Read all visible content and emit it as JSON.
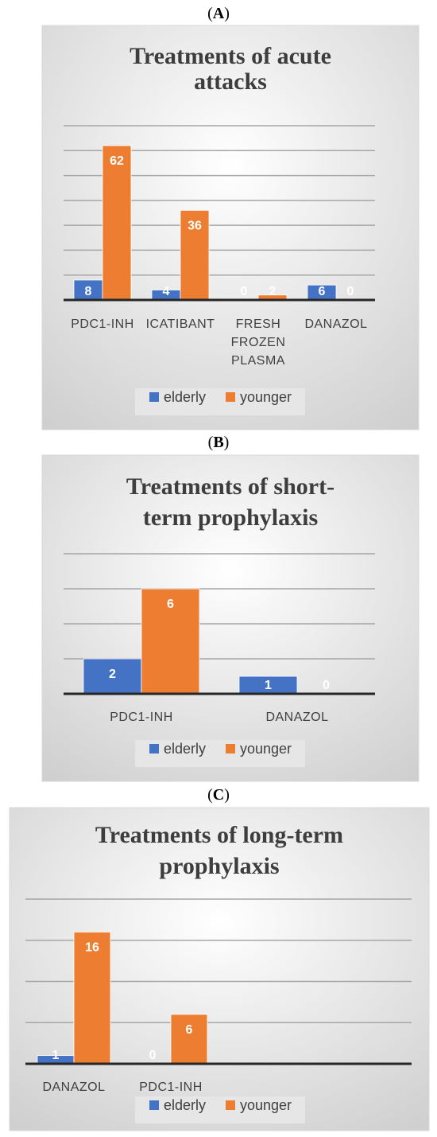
{
  "panels": [
    {
      "label_open": "(",
      "label_letter": "A",
      "label_close": ")"
    },
    {
      "label_open": "(",
      "label_letter": "B",
      "label_close": ")"
    },
    {
      "label_open": "(",
      "label_letter": "C",
      "label_close": ")"
    }
  ],
  "colors": {
    "elderly": "#4472C4",
    "younger": "#ED7D31",
    "gridline": "#a6a6a6",
    "axis": "#262626"
  },
  "chart_data": [
    {
      "type": "bar",
      "title": "Treatments of acute attacks",
      "title_lines": [
        "Treatments of acute",
        "attacks"
      ],
      "categories": [
        "PDC1-INH",
        "ICATIBANT",
        "FRESH FROZEN PLASMA",
        "DANAZOL"
      ],
      "category_lines": [
        [
          "PDC1-INH"
        ],
        [
          "ICATIBANT"
        ],
        [
          "FRESH",
          "FROZEN",
          "PLASMA"
        ],
        [
          "DANAZOL"
        ]
      ],
      "series": [
        {
          "name": "elderly",
          "values": [
            8,
            4,
            0,
            6
          ]
        },
        {
          "name": "younger",
          "values": [
            62,
            36,
            2,
            0
          ]
        }
      ],
      "ylim": [
        0,
        70
      ],
      "grid": true,
      "legend": "bottom"
    },
    {
      "type": "bar",
      "title": "Treatments of short-term prophylaxis",
      "title_lines": [
        "Treatments of short-",
        "term prophylaxis"
      ],
      "categories": [
        "PDC1-INH",
        "DANAZOL"
      ],
      "category_lines": [
        [
          "PDC1-INH"
        ],
        [
          "DANAZOL"
        ]
      ],
      "series": [
        {
          "name": "elderly",
          "values": [
            2,
            1
          ]
        },
        {
          "name": "younger",
          "values": [
            6,
            0
          ]
        }
      ],
      "ylim": [
        0,
        8
      ],
      "grid": true,
      "legend": "bottom"
    },
    {
      "type": "bar",
      "title": "Treatments of long-term prophylaxis",
      "title_lines": [
        "Treatments of long-term",
        "prophylaxis"
      ],
      "categories": [
        "DANAZOL",
        "PDC1-INH"
      ],
      "category_lines": [
        [
          "DANAZOL"
        ],
        [
          "PDC1-INH"
        ]
      ],
      "series": [
        {
          "name": "elderly",
          "values": [
            1,
            0
          ]
        },
        {
          "name": "younger",
          "values": [
            16,
            6
          ]
        }
      ],
      "ylim": [
        0,
        20
      ],
      "grid": true,
      "legend": "bottom"
    }
  ]
}
